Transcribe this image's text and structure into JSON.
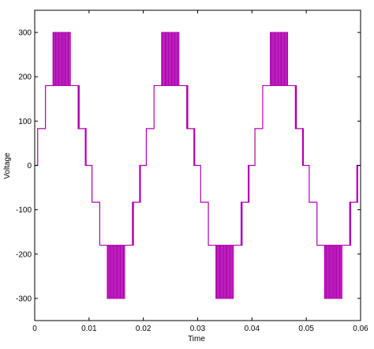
{
  "chart_data": {
    "type": "line",
    "title": "",
    "xlabel": "Time",
    "ylabel": "Voltage",
    "xlim": [
      0,
      0.06
    ],
    "ylim": [
      -350,
      350
    ],
    "x_ticks": [
      "0",
      "0.01",
      "0.02",
      "0.03",
      "0.04",
      "0.05",
      "0.06"
    ],
    "y_ticks": [
      "300",
      "200",
      "100",
      "0",
      "-100",
      "-200",
      "-300"
    ],
    "grid": false,
    "legend": "none",
    "series": [
      {
        "color": "#b000b0",
        "frequency_hz": 50,
        "step_levels": [
          0,
          83,
          180,
          300
        ],
        "description": "multilevel stepped PWM voltage waveform"
      }
    ]
  }
}
